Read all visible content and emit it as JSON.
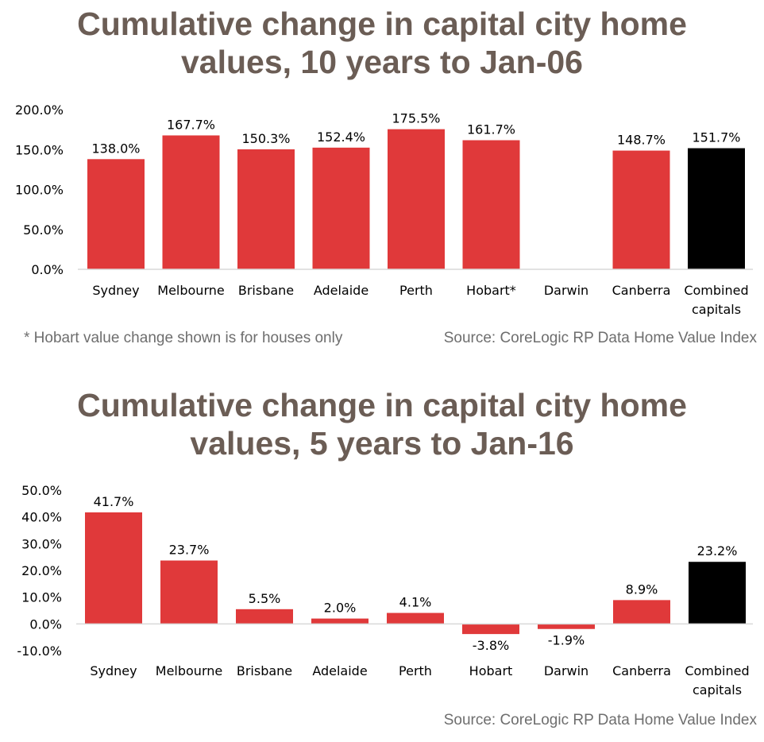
{
  "colors": {
    "bar": "#e0393a",
    "highlight": "#000000",
    "title": "#6b5d55",
    "note": "#6e6e6e"
  },
  "chart1": {
    "title_line1": "Cumulative change in capital city home",
    "title_line2": "values, 10 years to Jan-06",
    "footnote": "* Hobart value change shown is for houses only",
    "source": "Source: CoreLogic RP Data Home Value Index"
  },
  "chart2": {
    "title_line1": "Cumulative change in capital city home",
    "title_line2": "values, 5 years to Jan-16",
    "source": "Source: CoreLogic RP Data Home Value Index"
  },
  "chart_data": [
    {
      "type": "bar",
      "title": "Cumulative change in capital city home values, 10 years to Jan-06",
      "categories": [
        "Sydney",
        "Melbourne",
        "Brisbane",
        "Adelaide",
        "Perth",
        "Hobart*",
        "Darwin",
        "Canberra",
        "Combined capitals"
      ],
      "values": [
        138.0,
        167.7,
        150.3,
        152.4,
        175.5,
        161.7,
        null,
        148.7,
        151.7
      ],
      "value_labels": [
        "138.0%",
        "167.7%",
        "150.3%",
        "152.4%",
        "175.5%",
        "161.7%",
        "",
        "148.7%",
        "151.7%"
      ],
      "highlight_category": "Combined capitals",
      "ylim": [
        0,
        200
      ],
      "yticks": [
        0,
        50,
        100,
        150,
        200
      ],
      "ytick_labels": [
        "0.0%",
        "50.0%",
        "100.0%",
        "150.0%",
        "200.0%"
      ],
      "xlabel": "",
      "ylabel": "",
      "grid": false,
      "legend": "none"
    },
    {
      "type": "bar",
      "title": "Cumulative change in capital city home values, 5 years to Jan-16",
      "categories": [
        "Sydney",
        "Melbourne",
        "Brisbane",
        "Adelaide",
        "Perth",
        "Hobart",
        "Darwin",
        "Canberra",
        "Combined capitals"
      ],
      "values": [
        41.7,
        23.7,
        5.5,
        2.0,
        4.1,
        -3.8,
        -1.9,
        8.9,
        23.2
      ],
      "value_labels": [
        "41.7%",
        "23.7%",
        "5.5%",
        "2.0%",
        "4.1%",
        "-3.8%",
        "-1.9%",
        "8.9%",
        "23.2%"
      ],
      "highlight_category": "Combined capitals",
      "ylim": [
        -10,
        50
      ],
      "yticks": [
        -10,
        0,
        10,
        20,
        30,
        40,
        50
      ],
      "ytick_labels": [
        "-10.0%",
        "0.0%",
        "10.0%",
        "20.0%",
        "30.0%",
        "40.0%",
        "50.0%"
      ],
      "xlabel": "",
      "ylabel": "",
      "grid": false,
      "legend": "none"
    }
  ]
}
